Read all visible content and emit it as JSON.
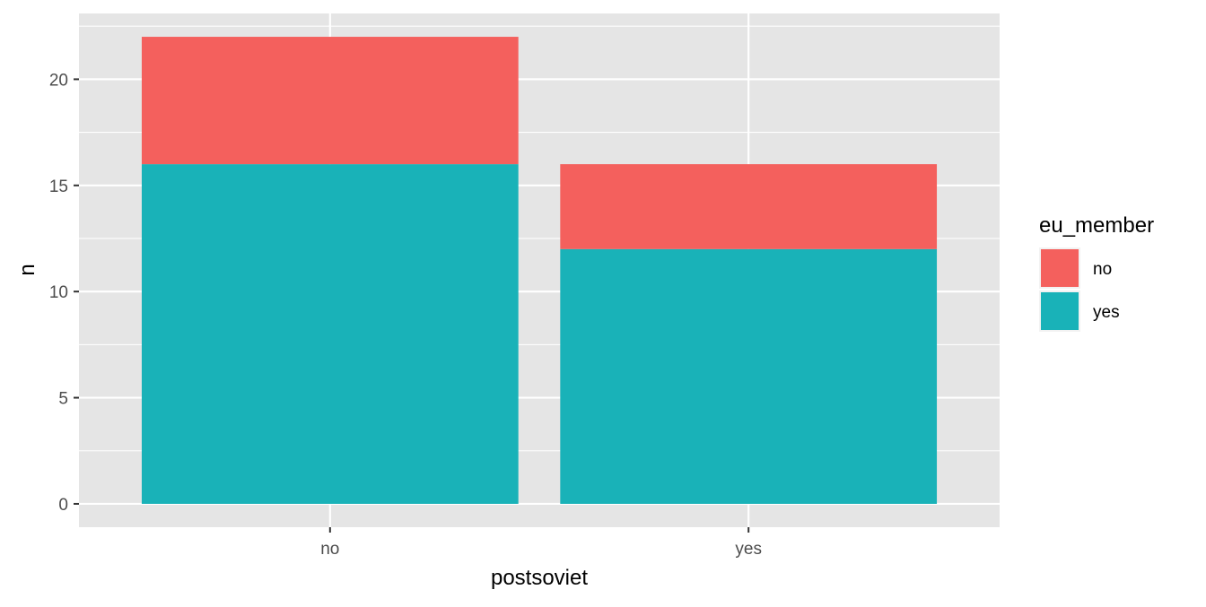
{
  "chart_data": {
    "type": "bar",
    "stacked": true,
    "categories": [
      "no",
      "yes"
    ],
    "series": [
      {
        "name": "yes",
        "values": [
          16,
          12
        ],
        "color": "#19B2B8"
      },
      {
        "name": "no",
        "values": [
          6,
          4
        ],
        "color": "#F4605D"
      }
    ],
    "xlabel": "postsoviet",
    "ylabel": "n",
    "ylim": [
      -1.1,
      23.1
    ],
    "yticks": [
      0,
      5,
      10,
      15,
      20
    ],
    "ytick_labels": [
      "0",
      "5",
      "10",
      "15",
      "20"
    ],
    "grid": true,
    "panel_background": "#E5E5E5",
    "grid_color": "#FFFFFF",
    "legend": {
      "title": "eu_member",
      "position": "right",
      "entries": [
        {
          "label": "no",
          "color": "#F4605D"
        },
        {
          "label": "yes",
          "color": "#19B2B8"
        }
      ]
    }
  }
}
